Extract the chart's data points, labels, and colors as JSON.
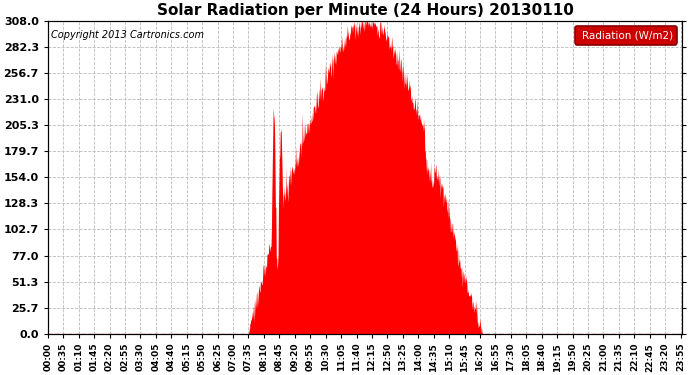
{
  "title": "Solar Radiation per Minute (24 Hours) 20130110",
  "copyright_text": "Copyright 2013 Cartronics.com",
  "legend_label": "Radiation (W/m2)",
  "yticks": [
    0.0,
    25.7,
    51.3,
    77.0,
    102.7,
    128.3,
    154.0,
    179.7,
    205.3,
    231.0,
    256.7,
    282.3,
    308.0
  ],
  "ymax": 308.0,
  "fill_color": "#ff0000",
  "dashed_line_color": "#ff0000",
  "background_color": "#ffffff",
  "legend_bg": "#cc0000",
  "legend_text_color": "#ffffff",
  "title_fontsize": 11,
  "copyright_fontsize": 7,
  "axis_fontsize": 6.5,
  "ytick_fontsize": 8,
  "tick_interval_minutes": 35,
  "total_minutes": 1440,
  "sunrise_minute": 455,
  "sunset_minute": 985,
  "peak_minute": 725,
  "peak_value": 308.0,
  "seed": 99
}
